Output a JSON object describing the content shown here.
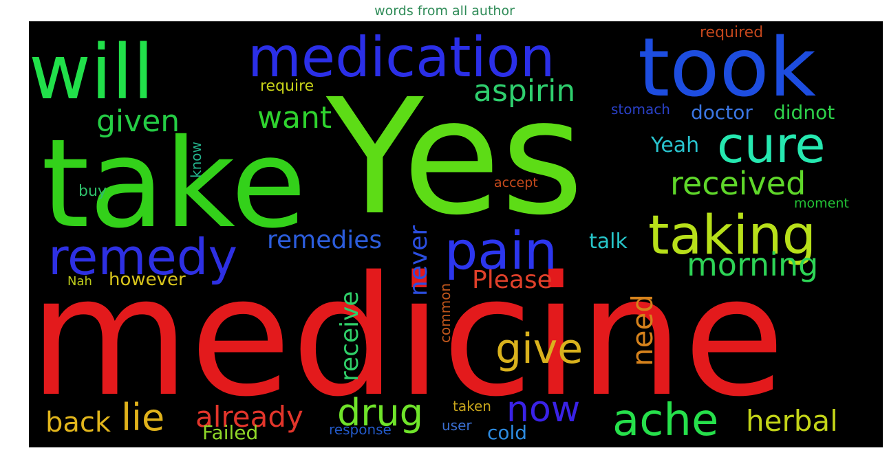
{
  "chart_data": {
    "type": "wordcloud",
    "title": "words from all author",
    "background": "#000000",
    "words": [
      {
        "text": "medicine",
        "color": "#e31a1c"
      },
      {
        "text": "Yes",
        "color": "#5ddc16"
      },
      {
        "text": "take",
        "color": "#33d11a"
      },
      {
        "text": "took",
        "color": "#1d4de0"
      },
      {
        "text": "will",
        "color": "#21e04a"
      },
      {
        "text": "medication",
        "color": "#2b2fe8"
      },
      {
        "text": "taking",
        "color": "#b8e01a"
      },
      {
        "text": "pain",
        "color": "#2c36ee"
      },
      {
        "text": "remedy",
        "color": "#2e30e3"
      },
      {
        "text": "cure",
        "color": "#26e8b0"
      },
      {
        "text": "ache",
        "color": "#26e04b"
      },
      {
        "text": "give",
        "color": "#d9b21d"
      },
      {
        "text": "drug",
        "color": "#6fe42a"
      },
      {
        "text": "lie",
        "color": "#e0b21b"
      },
      {
        "text": "now",
        "color": "#3a22e6"
      },
      {
        "text": "aspirin",
        "color": "#2fcf6e"
      },
      {
        "text": "received",
        "color": "#5fd72a"
      },
      {
        "text": "morning",
        "color": "#2ed456"
      },
      {
        "text": "want",
        "color": "#2fd32e"
      },
      {
        "text": "given",
        "color": "#25cd45"
      },
      {
        "text": "already",
        "color": "#e2352b"
      },
      {
        "text": "herbal",
        "color": "#c3d418"
      },
      {
        "text": "back",
        "color": "#e2b61c"
      },
      {
        "text": "remedies",
        "color": "#2c5ddc"
      },
      {
        "text": "Please",
        "color": "#e0402a"
      },
      {
        "text": "need",
        "color": "#d6821c"
      },
      {
        "text": "never",
        "color": "#2b4ee0"
      },
      {
        "text": "receive",
        "color": "#2fcf69"
      },
      {
        "text": "doctor",
        "color": "#3b76e3"
      },
      {
        "text": "didnot",
        "color": "#2ed24b"
      },
      {
        "text": "Yeah",
        "color": "#29c4cf"
      },
      {
        "text": "talk",
        "color": "#27c4c8"
      },
      {
        "text": "however",
        "color": "#d8c41c"
      },
      {
        "text": "Failed",
        "color": "#8fd829"
      },
      {
        "text": "cold",
        "color": "#2d8be0"
      },
      {
        "text": "required",
        "color": "#c2461c"
      },
      {
        "text": "require",
        "color": "#c9d419"
      },
      {
        "text": "stomach",
        "color": "#2a41c9"
      },
      {
        "text": "know",
        "color": "#24b58d"
      },
      {
        "text": "buy",
        "color": "#2fbf6a"
      },
      {
        "text": "accept",
        "color": "#c54a1c"
      },
      {
        "text": "moment",
        "color": "#23c436"
      },
      {
        "text": "Nah",
        "color": "#b9c71b"
      },
      {
        "text": "common",
        "color": "#c0561c"
      },
      {
        "text": "taken",
        "color": "#c9a61c"
      },
      {
        "text": "response",
        "color": "#2359c7"
      },
      {
        "text": "user",
        "color": "#3a6ed0"
      }
    ]
  }
}
